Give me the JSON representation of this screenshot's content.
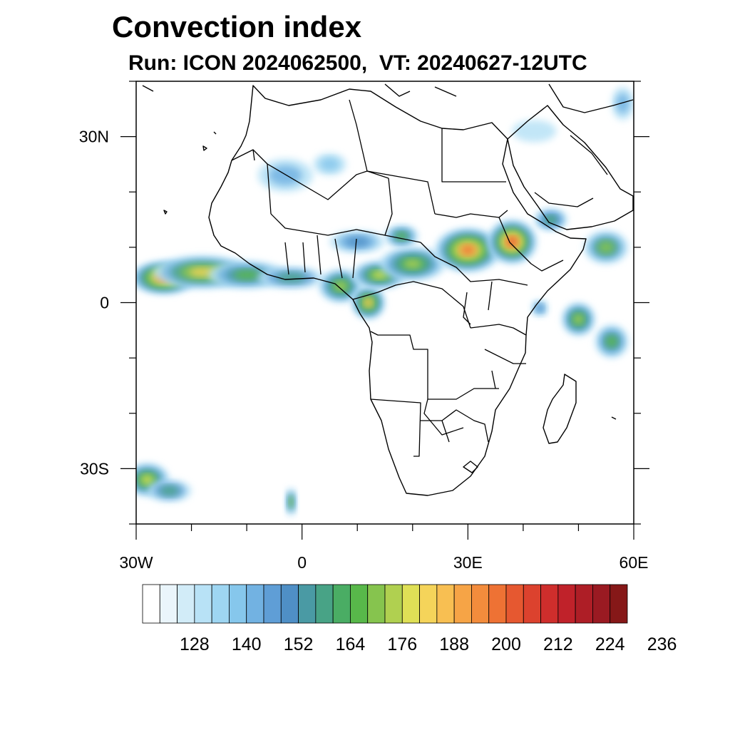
{
  "title": "Convection index",
  "subtitle": "Run: ICON 2024062500,  VT: 20240627-12UTC",
  "map": {
    "lon_range": [
      -30,
      60
    ],
    "lat_range": [
      -40,
      40
    ],
    "x_tick_labels": [
      {
        "lon": -30,
        "label": "30W"
      },
      {
        "lon": 0,
        "label": "0"
      },
      {
        "lon": 30,
        "label": "30E"
      },
      {
        "lon": 60,
        "label": "60E"
      }
    ],
    "y_tick_labels": [
      {
        "lat": 30,
        "label": "30N"
      },
      {
        "lat": 0,
        "label": "0"
      },
      {
        "lat": -30,
        "label": "30S"
      }
    ],
    "minor_tick_step_deg": 10
  },
  "colorbar": {
    "colors": [
      "#ffffff",
      "#eaf5fb",
      "#d2ecf8",
      "#b8e2f6",
      "#9ed6f2",
      "#86c7ec",
      "#72b2e2",
      "#5f9ed6",
      "#4f8fc6",
      "#4a9aa4",
      "#48a386",
      "#4aad64",
      "#58b84a",
      "#86c44e",
      "#b0d050",
      "#dfe056",
      "#f5d45a",
      "#f8bf52",
      "#f6a446",
      "#f38c3c",
      "#ee7234",
      "#e65830",
      "#dc422e",
      "#cf2e2c",
      "#c0222a",
      "#ae1e26",
      "#9a1a22",
      "#861818"
    ],
    "labels": [
      "128",
      "140",
      "152",
      "164",
      "176",
      "188",
      "200",
      "212",
      "224",
      "236"
    ]
  },
  "field_blobs": [
    {
      "lon": -25,
      "lat": 4.5,
      "rlon": 6,
      "rlat": 3,
      "level": 20
    },
    {
      "lon": -18,
      "lat": 5.5,
      "rlon": 9,
      "rlat": 3,
      "level": 16
    },
    {
      "lon": -10,
      "lat": 5,
      "rlon": 7,
      "rlat": 2.5,
      "level": 12
    },
    {
      "lon": -2,
      "lat": 4.5,
      "rlon": 6,
      "rlat": 2,
      "level": 10
    },
    {
      "lon": 7,
      "lat": 3,
      "rlon": 4,
      "rlat": 3,
      "level": 14
    },
    {
      "lon": 12,
      "lat": 0,
      "rlon": 3,
      "rlat": 3,
      "level": 17
    },
    {
      "lon": 14,
      "lat": 5,
      "rlon": 5,
      "rlat": 2.5,
      "level": 15
    },
    {
      "lon": 20,
      "lat": 7,
      "rlon": 6,
      "rlat": 3,
      "level": 14
    },
    {
      "lon": 30,
      "lat": 9.5,
      "rlon": 6,
      "rlat": 4,
      "level": 20
    },
    {
      "lon": 38,
      "lat": 11,
      "rlon": 4.5,
      "rlat": 4,
      "level": 21
    },
    {
      "lon": 10,
      "lat": 11,
      "rlon": 5,
      "rlat": 2,
      "level": 8
    },
    {
      "lon": 18,
      "lat": 12,
      "rlon": 3,
      "rlat": 2,
      "level": 12
    },
    {
      "lon": -3,
      "lat": 23,
      "rlon": 5,
      "rlat": 3,
      "level": 6
    },
    {
      "lon": 5,
      "lat": 25,
      "rlon": 3,
      "rlat": 2,
      "level": 5
    },
    {
      "lon": 45,
      "lat": 15,
      "rlon": 3,
      "rlat": 2,
      "level": 11
    },
    {
      "lon": 55,
      "lat": 10,
      "rlon": 4,
      "rlat": 3,
      "level": 13
    },
    {
      "lon": 50,
      "lat": -3,
      "rlon": 3,
      "rlat": 3,
      "level": 14
    },
    {
      "lon": 56,
      "lat": -7,
      "rlon": 3,
      "rlat": 3,
      "level": 12
    },
    {
      "lon": 43,
      "lat": -1,
      "rlon": 1.5,
      "rlat": 1.5,
      "level": 8
    },
    {
      "lon": -28,
      "lat": -32,
      "rlon": 4,
      "rlat": 3,
      "level": 15
    },
    {
      "lon": -24,
      "lat": -34,
      "rlon": 4,
      "rlat": 2,
      "level": 10
    },
    {
      "lon": -2,
      "lat": -36,
      "rlon": 1,
      "rlat": 2.5,
      "level": 13
    },
    {
      "lon": 42,
      "lat": 31,
      "rlon": 4,
      "rlat": 2,
      "level": 4
    },
    {
      "lon": 58,
      "lat": 36,
      "rlon": 2,
      "rlat": 3,
      "level": 6
    }
  ]
}
